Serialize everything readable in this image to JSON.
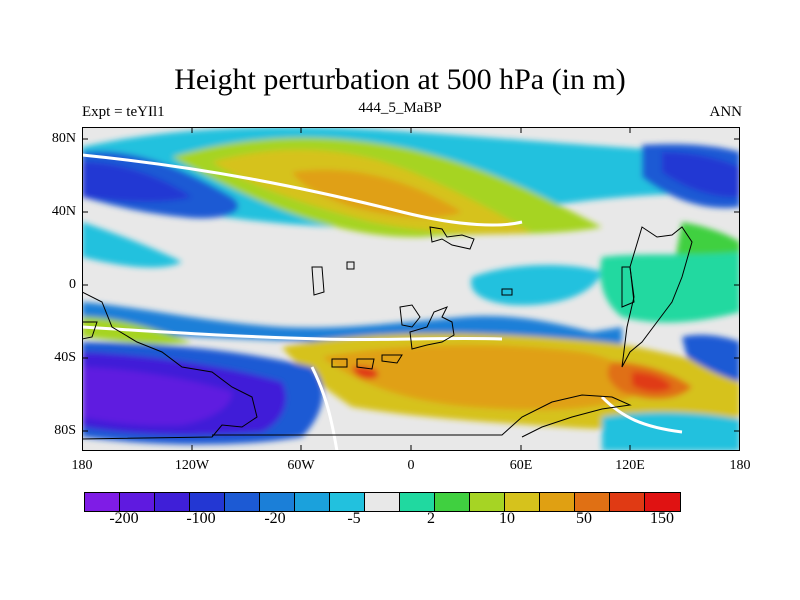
{
  "title": "Height perturbation at 500 hPa (in m)",
  "left_label": "Expt = teYIl1",
  "center_label": "444_5_MaBP",
  "right_label": "ANN",
  "lat_ticks": [
    "80N",
    "40N",
    "0",
    "40S",
    "80S"
  ],
  "lon_ticks": [
    "180",
    "120W",
    "60W",
    "0",
    "60E",
    "120E",
    "180"
  ],
  "colorbar": {
    "colors": [
      "#7F1CE6",
      "#5F1AE0",
      "#3F1FD8",
      "#2337D3",
      "#1C5AD4",
      "#1B7FD8",
      "#1BA1DC",
      "#22C1DE",
      "#E8E8E8",
      "#20D9A0",
      "#40D040",
      "#A6D424",
      "#D6C21C",
      "#E0A012",
      "#E07014",
      "#E03A14",
      "#E01212"
    ],
    "labels": [
      "-200",
      "-100",
      "-20",
      "-5",
      "2",
      "10",
      "50",
      "150"
    ]
  },
  "colors": {
    "neutral": "#E8E8E8",
    "coast": "#000000"
  }
}
